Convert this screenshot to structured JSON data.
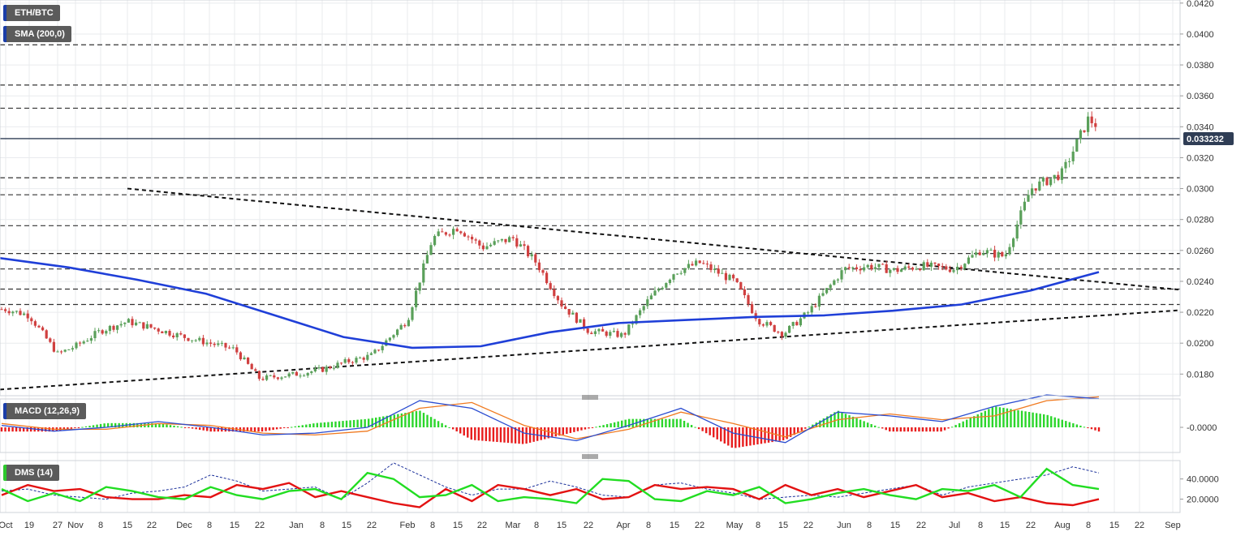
{
  "panels": {
    "price": {
      "symbol_label": "ETH/BTC",
      "indicator_label": "SMA (200,0)"
    },
    "macd": {
      "label": "MACD (12,26,9)"
    },
    "dms": {
      "label": "DMS (14)"
    }
  },
  "colors": {
    "bull_candle": "#5aa05a",
    "bear_candle": "#d04040",
    "sma": "#1f3fd8",
    "macd_line": "#2a4cd0",
    "signal_line": "#f07a20",
    "hist_pos": "#2bd62b",
    "hist_neg": "#e81c1c",
    "dms_plus": "#22dd22",
    "dms_minus": "#e31212",
    "adx": "#1a2f9a",
    "price_marker": "#2f3d55"
  },
  "chart_data": [
    {
      "type": "candlestick",
      "title": "ETH/BTC",
      "y_ticks": [
        "0.0420",
        "0.0400",
        "0.0380",
        "0.0360",
        "0.0340",
        "0.0320",
        "0.0300",
        "0.0280",
        "0.0260",
        "0.0240",
        "0.0220",
        "0.0200",
        "0.0180"
      ],
      "ylim": [
        0.0166,
        0.0422
      ],
      "current_price": "0.033232",
      "x_ticks": [
        "Oct",
        "19",
        "27",
        "Nov",
        "8",
        "15",
        "22",
        "Dec",
        "8",
        "15",
        "22",
        "Jan",
        "8",
        "15",
        "22",
        "Feb",
        "8",
        "15",
        "22",
        "Mar",
        "8",
        "15",
        "22",
        "Apr",
        "8",
        "15",
        "22",
        "May",
        "8",
        "15",
        "22",
        "Jun",
        "8",
        "15",
        "22",
        "Jul",
        "8",
        "15",
        "22",
        "Aug",
        "8",
        "15",
        "22",
        "Sep"
      ],
      "horizontal_levels": [
        0.0393,
        0.0367,
        0.0352,
        0.0307,
        0.0296,
        0.0276,
        0.0258,
        0.0248,
        0.0235,
        0.0225
      ],
      "trendlines": [
        {
          "name": "descending resistance",
          "from": [
            "Nov 15",
            0.03
          ],
          "to": [
            "Sep",
            0.0235
          ]
        },
        {
          "name": "ascending support",
          "from": [
            "Oct",
            0.017
          ],
          "to": [
            "Sep",
            0.0221
          ]
        }
      ],
      "price_path": [
        [
          "Oct",
          0.0222
        ],
        [
          "19",
          0.0218
        ],
        [
          "27",
          0.0193
        ],
        [
          "Nov",
          0.0198
        ],
        [
          "8",
          0.0208
        ],
        [
          "15",
          0.0214
        ],
        [
          "22",
          0.021
        ],
        [
          "Dec",
          0.0204
        ],
        [
          "8",
          0.02
        ],
        [
          "15",
          0.0196
        ],
        [
          "22",
          0.0177
        ],
        [
          "Jan",
          0.018
        ],
        [
          "8",
          0.0183
        ],
        [
          "15",
          0.0188
        ],
        [
          "22",
          0.0192
        ],
        [
          "Feb",
          0.0215
        ],
        [
          "8",
          0.0268
        ],
        [
          "15",
          0.0275
        ],
        [
          "22",
          0.0262
        ],
        [
          "Mar",
          0.0268
        ],
        [
          "8",
          0.0252
        ],
        [
          "15",
          0.0225
        ],
        [
          "22",
          0.0208
        ],
        [
          "Apr",
          0.0205
        ],
        [
          "8",
          0.0228
        ],
        [
          "15",
          0.0246
        ],
        [
          "22",
          0.0252
        ],
        [
          "May",
          0.024
        ],
        [
          "8",
          0.0215
        ],
        [
          "15",
          0.0206
        ],
        [
          "22",
          0.022
        ],
        [
          "Jun",
          0.0248
        ],
        [
          "8",
          0.025
        ],
        [
          "15",
          0.0247
        ],
        [
          "22",
          0.025
        ],
        [
          "Jul",
          0.0248
        ],
        [
          "8",
          0.026
        ],
        [
          "15",
          0.0256
        ],
        [
          "22",
          0.03
        ],
        [
          "Aug",
          0.031
        ],
        [
          "8",
          0.0345
        ],
        [
          "15",
          0.0333
        ]
      ],
      "series": [
        {
          "name": "SMA (200,0)",
          "values": [
            0.0255,
            0.0249,
            0.0241,
            0.0232,
            0.0218,
            0.0204,
            0.0197,
            0.0198,
            0.0207,
            0.0213,
            0.0215,
            0.0217,
            0.0218,
            0.0221,
            0.0225,
            0.0234,
            0.0246
          ]
        }
      ]
    },
    {
      "type": "line",
      "title": "MACD (12,26,9)",
      "y_ticks": [
        "-0.0000"
      ],
      "series": [
        {
          "name": "MACD",
          "values": [
            0.0001,
            -0.0002,
            0.0,
            0.0003,
            0.0,
            -0.0004,
            -0.0003,
            0.0,
            0.0014,
            0.001,
            -0.0003,
            -0.0007,
            0.0001,
            0.001,
            -0.0003,
            -0.0008,
            0.0008,
            0.0006,
            0.0003,
            0.0011,
            0.0017,
            0.0015
          ]
        },
        {
          "name": "Signal",
          "values": [
            0.0002,
            -0.0001,
            -0.0001,
            0.0002,
            0.0001,
            -0.0003,
            -0.0004,
            -0.0002,
            0.001,
            0.0013,
            0.0001,
            -0.0006,
            -0.0001,
            0.0008,
            0.0002,
            -0.0005,
            0.0004,
            0.0007,
            0.0004,
            0.0006,
            0.0014,
            0.0016
          ]
        }
      ]
    },
    {
      "type": "line",
      "title": "DMS (14)",
      "y_ticks": [
        "40.0000",
        "20.0000"
      ],
      "series": [
        {
          "name": "+DI",
          "values": [
            30,
            18,
            26,
            18,
            32,
            28,
            22,
            20,
            32,
            24,
            20,
            28,
            30,
            20,
            46,
            40,
            22,
            24,
            34,
            18,
            22,
            20,
            16,
            40,
            38,
            20,
            18,
            28,
            24,
            32,
            16,
            20,
            26,
            30,
            24,
            20,
            30,
            28,
            34,
            22,
            50,
            34,
            30
          ]
        },
        {
          "name": "-DI",
          "values": [
            24,
            34,
            28,
            30,
            22,
            20,
            20,
            24,
            22,
            34,
            30,
            36,
            22,
            28,
            22,
            16,
            12,
            30,
            18,
            34,
            30,
            24,
            30,
            20,
            22,
            34,
            30,
            32,
            30,
            20,
            34,
            24,
            30,
            22,
            28,
            34,
            22,
            26,
            18,
            22,
            16,
            14,
            20
          ]
        },
        {
          "name": "ADX",
          "values": [
            28,
            30,
            24,
            22,
            20,
            26,
            28,
            32,
            44,
            38,
            28,
            30,
            32,
            20,
            36,
            56,
            44,
            32,
            24,
            30,
            30,
            38,
            32,
            24,
            22,
            34,
            36,
            30,
            26,
            20,
            22,
            24,
            22,
            26,
            30,
            34,
            24,
            32,
            36,
            40,
            44,
            52,
            46
          ]
        }
      ]
    }
  ]
}
